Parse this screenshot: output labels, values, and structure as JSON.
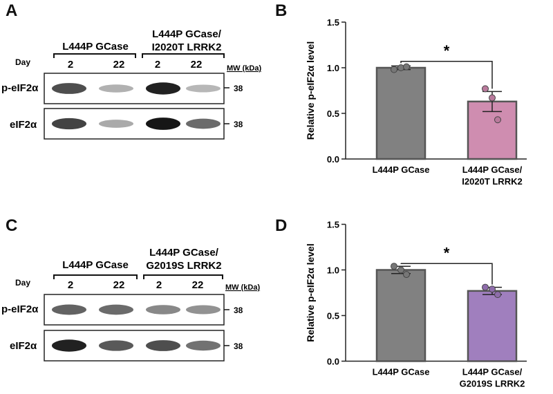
{
  "panels": {
    "A": {
      "letter": "A",
      "group1": "L444P GCase",
      "group2_line1": "L444P GCase/",
      "group2_line2": "I2020T LRRK2",
      "day_label": "Day",
      "days": [
        "2",
        "22",
        "2",
        "22"
      ],
      "mw_label": "MW (kDa)",
      "rows": [
        {
          "label": "p-eIF2α",
          "mw": "38",
          "band_intensity": [
            0.82,
            0.45,
            0.95,
            0.42
          ]
        },
        {
          "label": "eIF2α",
          "mw": "38",
          "band_intensity": [
            0.85,
            0.48,
            0.98,
            0.72
          ]
        }
      ]
    },
    "C": {
      "letter": "C",
      "group1": "L444P GCase",
      "group2_line1": "L444P GCase/",
      "group2_line2": "G2019S LRRK2",
      "day_label": "Day",
      "days": [
        "2",
        "22",
        "2",
        "22"
      ],
      "mw_label": "MW (kDa)",
      "rows": [
        {
          "label": "p-eIF2α",
          "mw": "38",
          "band_intensity": [
            0.75,
            0.72,
            0.62,
            0.58
          ]
        },
        {
          "label": "eIF2α",
          "mw": "38",
          "band_intensity": [
            0.95,
            0.78,
            0.82,
            0.7
          ]
        }
      ]
    }
  },
  "chart_data": [
    {
      "panel": "B",
      "type": "bar",
      "categories": [
        "L444P GCase",
        "L444P GCase/\nI2020T LRRK2"
      ],
      "values": [
        1.0,
        0.63
      ],
      "errors": [
        0.02,
        0.11
      ],
      "points": [
        [
          0.98,
          1.0,
          1.01
        ],
        [
          0.77,
          0.67,
          0.43
        ]
      ],
      "bar_colors": [
        "#818181",
        "#cf8db0"
      ],
      "point_colors": [
        "#777777",
        "#b97a9c"
      ],
      "ylabel": "Relative p-eIF2α level",
      "ylim": [
        0,
        1.5
      ],
      "yticks": [
        "0.0",
        "0.5",
        "1.0",
        "1.5"
      ],
      "significance": "*"
    },
    {
      "panel": "D",
      "type": "bar",
      "categories": [
        "L444P GCase",
        "L444P GCase/\nG2019S LRRK2"
      ],
      "values": [
        1.0,
        0.77
      ],
      "errors": [
        0.04,
        0.04
      ],
      "points": [
        [
          1.04,
          1.0,
          0.95
        ],
        [
          0.81,
          0.79,
          0.73
        ]
      ],
      "bar_colors": [
        "#818181",
        "#a07fbe"
      ],
      "point_colors": [
        "#777777",
        "#8e6cab"
      ],
      "ylabel": "Relative p-eIF2α level",
      "ylim": [
        0,
        1.5
      ],
      "yticks": [
        "0.0",
        "0.5",
        "1.0",
        "1.5"
      ],
      "significance": "*"
    }
  ]
}
